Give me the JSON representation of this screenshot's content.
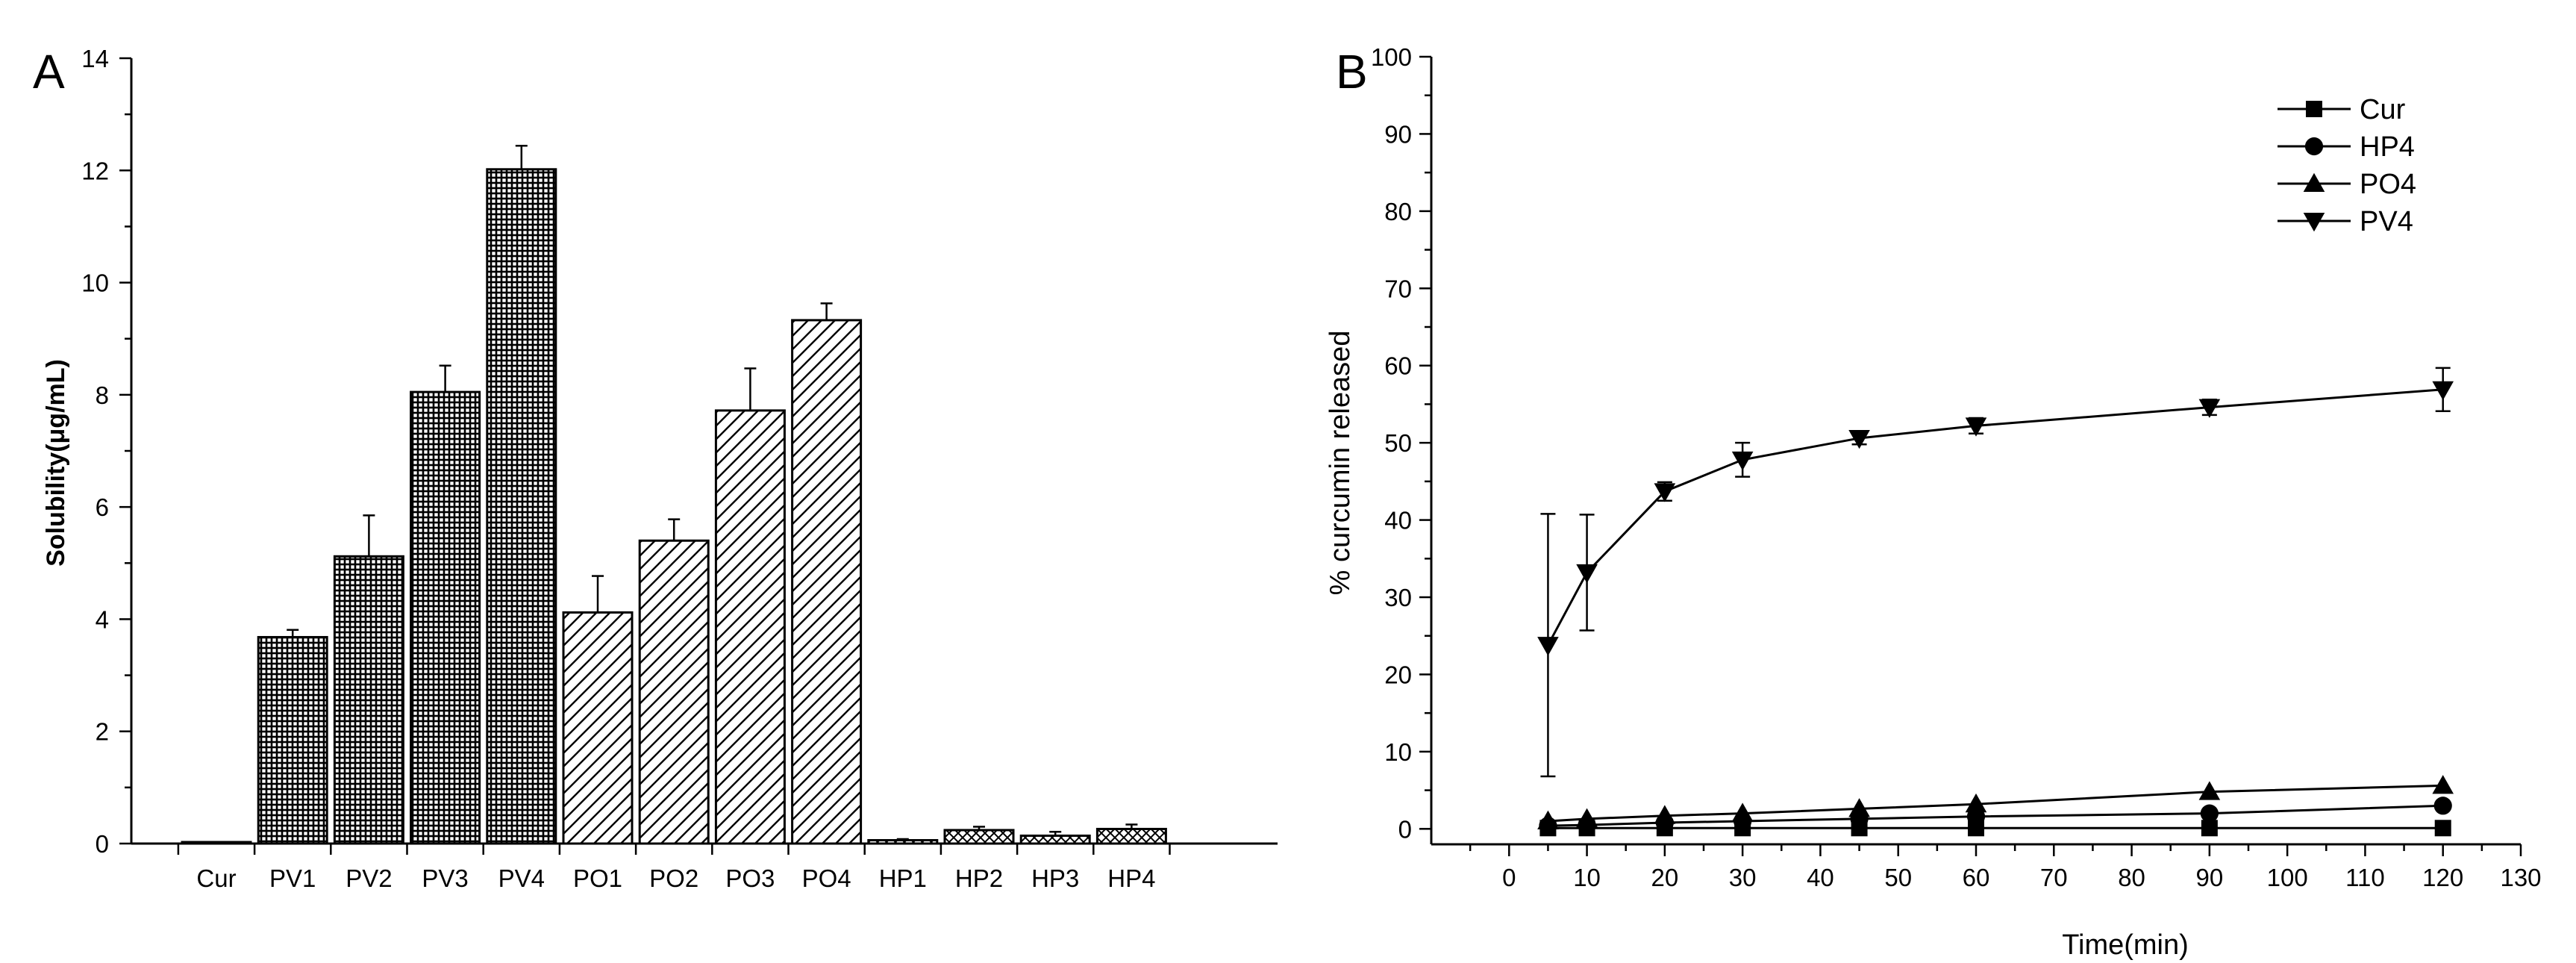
{
  "chart_data": [
    {
      "panel_label": "A",
      "type": "bar",
      "ylabel": "Solubility(μg/mL)",
      "xlabel": "",
      "ylim": [
        0,
        14
      ],
      "yticks": [
        "0",
        "2",
        "4",
        "6",
        "8",
        "10",
        "12",
        "14"
      ],
      "categories": [
        "Cur",
        "PV1",
        "PV2",
        "PV3",
        "PV4",
        "PO1",
        "PO2",
        "PO3",
        "PO4",
        "HP1",
        "HP2",
        "HP3",
        "HP4"
      ],
      "values": [
        0.02,
        3.68,
        5.12,
        8.05,
        12.02,
        4.12,
        5.4,
        7.72,
        9.33,
        0.06,
        0.24,
        0.14,
        0.26
      ],
      "errors": [
        0.0,
        0.13,
        0.73,
        0.47,
        0.42,
        0.65,
        0.38,
        0.75,
        0.3,
        0.02,
        0.06,
        0.07,
        0.08
      ],
      "fill_patterns": [
        "solid",
        "grid",
        "grid",
        "grid",
        "grid",
        "diagonal",
        "diagonal",
        "diagonal",
        "diagonal",
        "crosshatch",
        "crosshatch",
        "crosshatch",
        "crosshatch"
      ],
      "grid": false
    },
    {
      "panel_label": "B",
      "type": "line",
      "xlabel": "Time(min)",
      "ylabel": "% curcumin released",
      "xlim": [
        -10,
        130
      ],
      "ylim": [
        -2,
        100
      ],
      "xticks": [
        "0",
        "10",
        "20",
        "30",
        "40",
        "50",
        "60",
        "70",
        "80",
        "90",
        "100",
        "110",
        "120",
        "130"
      ],
      "yticks": [
        "0",
        "10",
        "20",
        "30",
        "40",
        "50",
        "60",
        "70",
        "80",
        "90",
        "100"
      ],
      "x": [
        5,
        10,
        20,
        30,
        45,
        60,
        90,
        120
      ],
      "series": [
        {
          "name": "Cur",
          "marker": "square",
          "values": [
            0.1,
            0.1,
            0.1,
            0.1,
            0.1,
            0.1,
            0.1,
            0.1
          ]
        },
        {
          "name": "HP4",
          "marker": "circle",
          "values": [
            0.4,
            0.5,
            0.8,
            1.0,
            1.3,
            1.6,
            2.0,
            3.0
          ]
        },
        {
          "name": "PO4",
          "marker": "triangle-up",
          "values": [
            1.0,
            1.3,
            1.7,
            2.0,
            2.6,
            3.2,
            4.8,
            5.6
          ]
        },
        {
          "name": "PV4",
          "marker": "triangle-down",
          "values": [
            23.8,
            33.2,
            43.7,
            47.8,
            50.6,
            52.2,
            54.6,
            56.9
          ],
          "errors": [
            17.0,
            7.5,
            1.2,
            2.2,
            0.8,
            1.0,
            1.0,
            2.8
          ]
        }
      ],
      "legend_position": "top-right",
      "grid": false
    }
  ]
}
